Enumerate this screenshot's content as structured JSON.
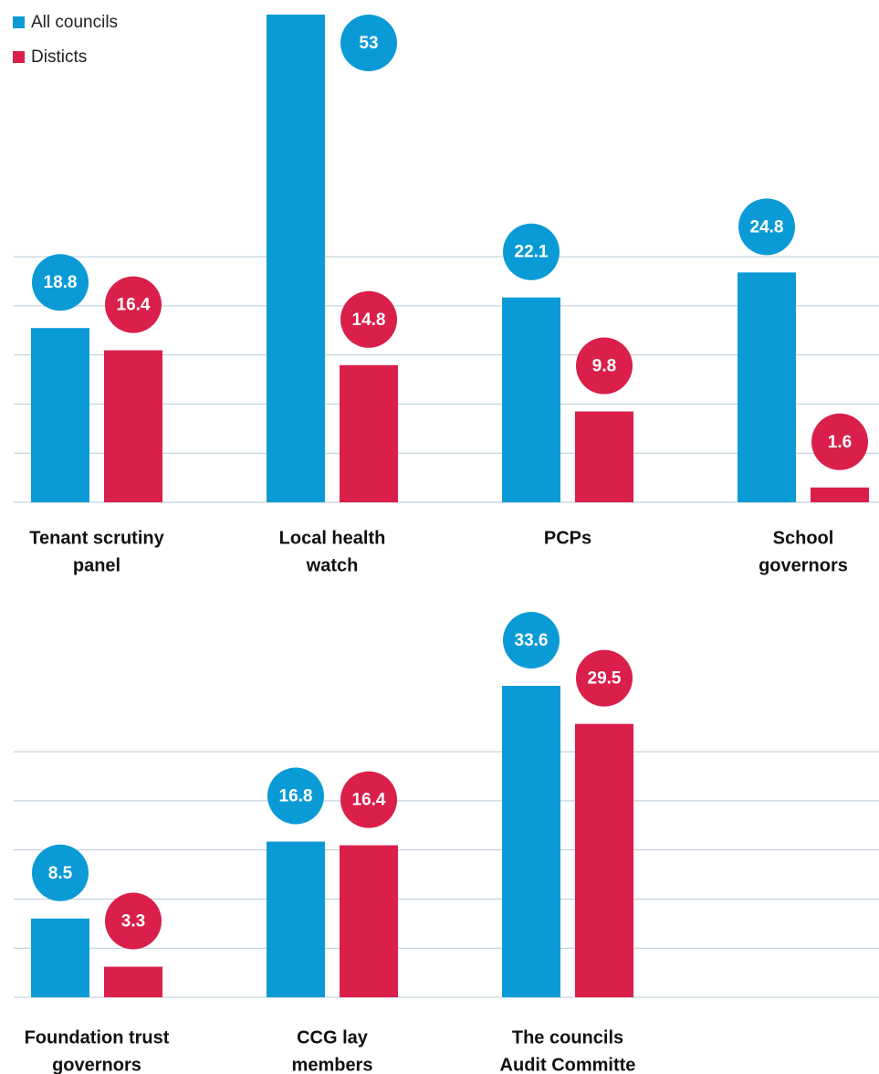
{
  "chart_data": [
    {
      "type": "bar",
      "categories": [
        [
          "Tenant scrutiny",
          "panel"
        ],
        [
          "Local health",
          "watch"
        ],
        [
          "PCPs"
        ],
        [
          "School",
          "governors"
        ]
      ],
      "series": [
        {
          "name": "All councils",
          "color": "#0a9bd6",
          "values": [
            18.8,
            53,
            22.1,
            24.8
          ]
        },
        {
          "name": "Disticts",
          "color": "#d91f4a",
          "values": [
            16.4,
            14.8,
            9.8,
            1.6
          ]
        }
      ],
      "ylim": [
        0,
        54
      ],
      "yticks": [
        0,
        5.3,
        10.6,
        15.9,
        21.2,
        26.5
      ],
      "grid": true,
      "legend": "top-left"
    },
    {
      "type": "bar",
      "categories": [
        [
          "Foundation trust",
          "governors"
        ],
        [
          "CCG lay",
          "members"
        ],
        [
          "The councils",
          "Audit Committe"
        ]
      ],
      "series": [
        {
          "color": "#0a9bd6",
          "values": [
            8.5,
            16.8,
            33.6
          ]
        },
        {
          "color": "#d91f4a",
          "values": [
            3.3,
            16.4,
            29.5
          ]
        }
      ],
      "ylim": [
        0,
        54
      ],
      "yticks": [
        0,
        5.3,
        10.6,
        15.9,
        21.2,
        26.5
      ],
      "grid": true
    }
  ]
}
